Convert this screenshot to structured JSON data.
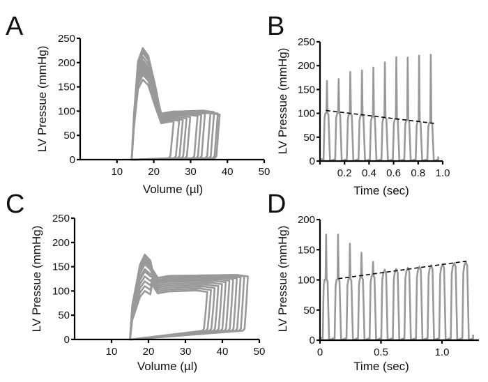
{
  "chart_data": [
    {
      "panel": "A",
      "type": "line",
      "title": "",
      "xlabel": "Volume (µl)",
      "ylabel": "LV Pressue (mmHg)",
      "xlim": [
        0,
        50
      ],
      "ylim": [
        0,
        250
      ],
      "xticks": [
        10,
        20,
        30,
        40,
        50
      ],
      "yticks": [
        0,
        50,
        100,
        150,
        200,
        250
      ],
      "esv": 14,
      "peak_volume": 17,
      "knee_volume": 22,
      "end_diastolic_pressure": 3,
      "loops": [
        {
          "edv": 24.5,
          "peak": 165,
          "plateau": 78
        },
        {
          "edv": 26,
          "peak": 175,
          "plateau": 80
        },
        {
          "edv": 27,
          "peak": 180,
          "plateau": 82
        },
        {
          "edv": 28,
          "peak": 185,
          "plateau": 85
        },
        {
          "edv": 29,
          "peak": 190,
          "plateau": 88
        },
        {
          "edv": 31,
          "peak": 195,
          "plateau": 90
        },
        {
          "edv": 32,
          "peak": 200,
          "plateau": 92
        },
        {
          "edv": 33,
          "peak": 205,
          "plateau": 95
        },
        {
          "edv": 34.5,
          "peak": 212,
          "plateau": 97
        },
        {
          "edv": 35.5,
          "peak": 220,
          "plateau": 98
        },
        {
          "edv": 36.5,
          "peak": 225,
          "plateau": 95
        },
        {
          "edv": 37,
          "peak": 230,
          "plateau": 93
        }
      ]
    },
    {
      "panel": "B",
      "type": "line",
      "title": "",
      "xlabel": "Time (sec)",
      "ylabel": "LV Pressue (mmHg)",
      "xlim": [
        0,
        1.0
      ],
      "ylim": [
        0,
        250
      ],
      "xticks": [
        "0.2",
        "0.4",
        "0.6",
        "0.8",
        "1.0"
      ],
      "yticks": [
        0,
        50,
        100,
        150,
        200,
        250
      ],
      "beats": [
        {
          "t": 0.057,
          "peak": 168,
          "plateau": 100
        },
        {
          "t": 0.152,
          "peak": 172,
          "plateau": 100
        },
        {
          "t": 0.247,
          "peak": 187,
          "plateau": 98
        },
        {
          "t": 0.342,
          "peak": 190,
          "plateau": 95
        },
        {
          "t": 0.435,
          "peak": 196,
          "plateau": 92
        },
        {
          "t": 0.529,
          "peak": 207,
          "plateau": 90
        },
        {
          "t": 0.622,
          "peak": 218,
          "plateau": 88
        },
        {
          "t": 0.715,
          "peak": 217,
          "plateau": 85
        },
        {
          "t": 0.808,
          "peak": 221,
          "plateau": 83
        },
        {
          "t": 0.903,
          "peak": 223,
          "plateau": 80
        }
      ],
      "trend_line": {
        "from": [
          0.05,
          106
        ],
        "to": [
          0.93,
          79
        ],
        "style": "dashed"
      }
    },
    {
      "panel": "C",
      "type": "line",
      "title": "",
      "xlabel": "Volume (µl)",
      "ylabel": "LV Pressue (mmHg)",
      "xlim": [
        0,
        50
      ],
      "ylim": [
        0,
        250
      ],
      "xticks": [
        10,
        20,
        30,
        40,
        50
      ],
      "yticks": [
        0,
        50,
        100,
        150,
        200,
        250
      ],
      "esv": 15,
      "peak_volume": 19,
      "knee_volume": 22.5,
      "end_diastolic_pressure": 18,
      "loops": [
        {
          "edv": 35,
          "peak": 100,
          "plateau": 98
        },
        {
          "edv": 36,
          "peak": 110,
          "plateau": 102
        },
        {
          "edv": 37,
          "peak": 120,
          "plateau": 106
        },
        {
          "edv": 38,
          "peak": 130,
          "plateau": 110
        },
        {
          "edv": 39,
          "peak": 140,
          "plateau": 114
        },
        {
          "edv": 40,
          "peak": 145,
          "plateau": 118
        },
        {
          "edv": 41,
          "peak": 155,
          "plateau": 121
        },
        {
          "edv": 42,
          "peak": 160,
          "plateau": 124
        },
        {
          "edv": 43,
          "peak": 165,
          "plateau": 126
        },
        {
          "edv": 44,
          "peak": 170,
          "plateau": 128
        },
        {
          "edv": 45,
          "peak": 173,
          "plateau": 130
        },
        {
          "edv": 46,
          "peak": 175,
          "plateau": 130
        }
      ]
    },
    {
      "panel": "D",
      "type": "line",
      "title": "",
      "xlabel": "Time (sec)",
      "ylabel": "LV Pressue (mmHg)",
      "xlim": [
        0,
        1.26
      ],
      "ylim": [
        0,
        200
      ],
      "xticks": [
        "0",
        "0.5",
        "1.0"
      ],
      "yticks": [
        0,
        50,
        100,
        150,
        200
      ],
      "beats": [
        {
          "t": 0.05,
          "peak": 175,
          "plateau": 100
        },
        {
          "t": 0.148,
          "peak": 175,
          "plateau": 100
        },
        {
          "t": 0.245,
          "peak": 160,
          "plateau": 101
        },
        {
          "t": 0.34,
          "peak": 145,
          "plateau": 103
        },
        {
          "t": 0.435,
          "peak": 130,
          "plateau": 106
        },
        {
          "t": 0.53,
          "peak": 117,
          "plateau": 110
        },
        {
          "t": 0.625,
          "peak": 118,
          "plateau": 112
        },
        {
          "t": 0.72,
          "peak": 120,
          "plateau": 114
        },
        {
          "t": 0.815,
          "peak": 122,
          "plateau": 116
        },
        {
          "t": 0.91,
          "peak": 124,
          "plateau": 118
        },
        {
          "t": 1.005,
          "peak": 126,
          "plateau": 120
        },
        {
          "t": 1.1,
          "peak": 128,
          "plateau": 122
        },
        {
          "t": 1.195,
          "peak": 130,
          "plateau": 124
        }
      ],
      "trend_line": {
        "from": [
          0.15,
          102
        ],
        "to": [
          1.2,
          131
        ],
        "style": "dashed"
      }
    }
  ],
  "panel_letters": [
    "A",
    "B",
    "C",
    "D"
  ]
}
